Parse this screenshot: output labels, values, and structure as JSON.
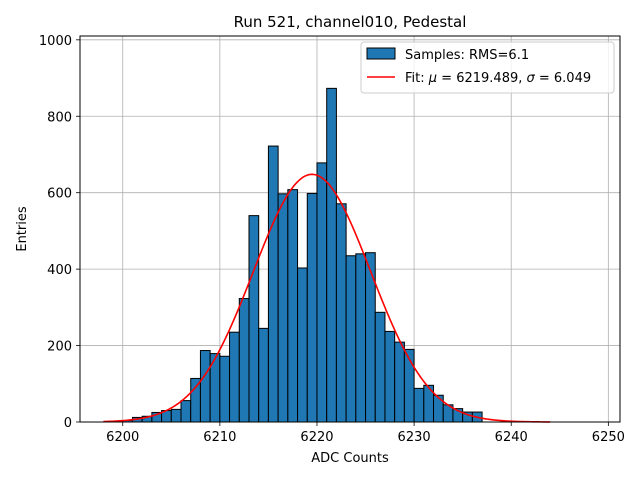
{
  "chart_data": {
    "type": "bar",
    "title": "Run 521, channel010, Pedestal",
    "xlabel": "ADC Counts",
    "ylabel": "Entries",
    "xlim": [
      6195.6,
      6251.2
    ],
    "ylim": [
      0,
      1010
    ],
    "xticks": [
      6200,
      6210,
      6220,
      6230,
      6240,
      6250
    ],
    "yticks": [
      0,
      200,
      400,
      600,
      800,
      1000
    ],
    "grid": true,
    "bar_color": "#1f77b4",
    "fit_color": "#ff0000",
    "histogram": {
      "name": "Samples: RMS=6.1",
      "bin_edges": [
        6200.0,
        6201.0,
        6202.0,
        6203.0,
        6204.0,
        6205.0,
        6206.0,
        6207.0,
        6208.0,
        6209.0,
        6210.0,
        6211.0,
        6212.0,
        6213.0,
        6214.0,
        6215.0,
        6216.0,
        6217.0,
        6218.0,
        6219.0,
        6220.0,
        6221.0,
        6222.0,
        6223.0,
        6224.0,
        6225.0,
        6226.0,
        6227.0,
        6228.0,
        6229.0,
        6230.0,
        6231.0,
        6232.0,
        6233.0,
        6234.0,
        6235.0,
        6236.0,
        6237.0
      ],
      "counts": [
        4,
        12,
        15,
        25,
        30,
        33,
        56,
        114,
        187,
        179,
        172,
        235,
        323,
        540,
        245,
        722,
        597,
        608,
        403,
        598,
        678,
        873,
        571,
        435,
        440,
        443,
        287,
        237,
        209,
        190,
        88,
        96,
        70,
        45,
        35,
        26,
        26
      ]
    },
    "fit": {
      "name": "Fit: μ = 6219.489, σ = 6.049",
      "label_prefix": "Fit: ",
      "mu_symbol": "μ",
      "mu_text": " = 6219.489, ",
      "sigma_symbol": "σ",
      "sigma_text": " = 6.049",
      "mu": 6219.489,
      "sigma": 6.049,
      "amplitude": 648,
      "x_range": [
        6198,
        6244
      ]
    },
    "legend_position": "upper right"
  }
}
